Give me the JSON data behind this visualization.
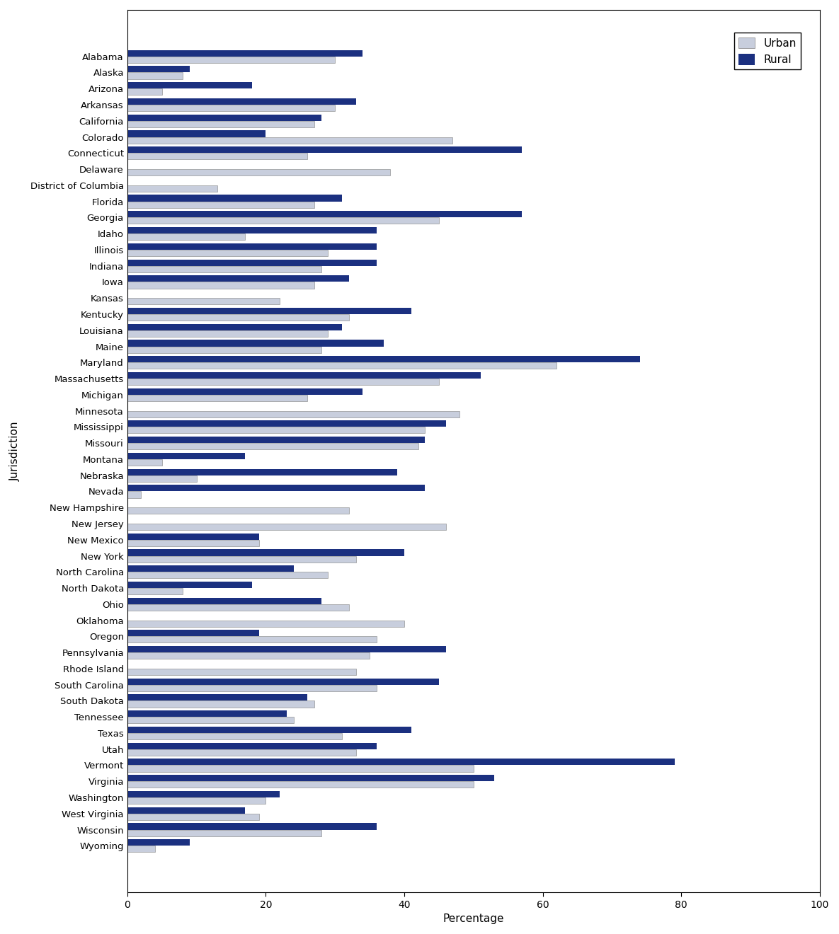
{
  "states": [
    "Alabama",
    "Alaska",
    "Arizona",
    "Arkansas",
    "California",
    "Colorado",
    "Connecticut",
    "Delaware",
    "District of Columbia",
    "Florida",
    "Georgia",
    "Idaho",
    "Illinois",
    "Indiana",
    "Iowa",
    "Kansas",
    "Kentucky",
    "Louisiana",
    "Maine",
    "Maryland",
    "Massachusetts",
    "Michigan",
    "Minnesota",
    "Mississippi",
    "Missouri",
    "Montana",
    "Nebraska",
    "Nevada",
    "New Hampshire",
    "New Jersey",
    "New Mexico",
    "New York",
    "North Carolina",
    "North Dakota",
    "Ohio",
    "Oklahoma",
    "Oregon",
    "Pennsylvania",
    "Rhode Island",
    "South Carolina",
    "South Dakota",
    "Tennessee",
    "Texas",
    "Utah",
    "Vermont",
    "Virginia",
    "Washington",
    "West Virginia",
    "Wisconsin",
    "Wyoming"
  ],
  "urban": [
    30,
    8,
    5,
    30,
    27,
    47,
    26,
    38,
    13,
    27,
    45,
    17,
    29,
    28,
    27,
    22,
    32,
    29,
    28,
    62,
    45,
    26,
    48,
    43,
    42,
    5,
    10,
    2,
    32,
    46,
    19,
    33,
    29,
    8,
    32,
    40,
    36,
    35,
    33,
    36,
    27,
    24,
    31,
    33,
    50,
    50,
    20,
    19,
    28,
    4
  ],
  "rural": [
    34,
    9,
    18,
    33,
    28,
    20,
    57,
    0,
    0,
    31,
    57,
    36,
    36,
    36,
    32,
    0,
    41,
    31,
    37,
    74,
    51,
    34,
    0,
    46,
    43,
    17,
    39,
    43,
    0,
    0,
    19,
    40,
    24,
    18,
    28,
    0,
    19,
    46,
    0,
    45,
    26,
    23,
    41,
    36,
    79,
    53,
    22,
    17,
    36,
    9
  ],
  "urban_color": "#c8cedd",
  "rural_color": "#1b3080",
  "xlabel": "Percentage",
  "ylabel": "Jurisdiction",
  "xlim": [
    0,
    100
  ],
  "xticks": [
    0,
    20,
    40,
    60,
    80,
    100
  ],
  "bar_height": 0.4,
  "figsize": [
    11.85,
    13.2
  ],
  "dpi": 100
}
